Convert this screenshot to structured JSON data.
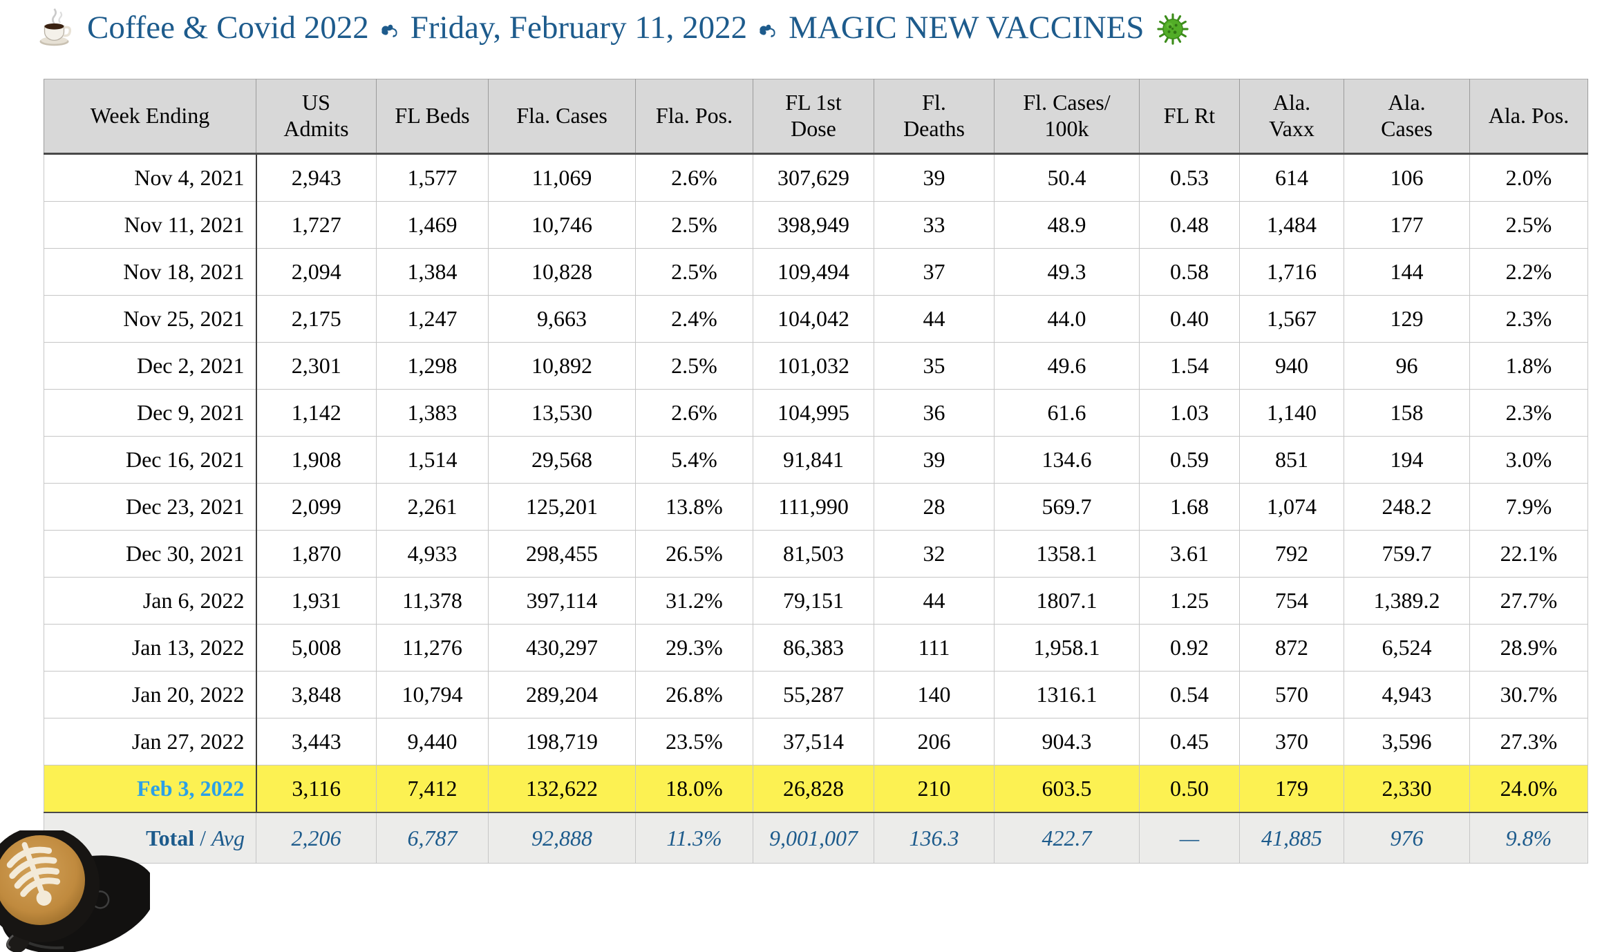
{
  "title": {
    "part1": "Coffee & Covid 2022",
    "part2": "Friday, February 11, 2022",
    "part3": "MAGIC NEW VACCINES",
    "separator_glyph": "❧"
  },
  "images": {
    "title_left": "steaming-coffee-cup",
    "title_right": "green-virus",
    "bottom_left": "latte-art-in-black-cup"
  },
  "colors": {
    "title_blue": "#1d5b8c",
    "header_gray": "#d8d8d8",
    "highlight_yellow": "#fcf152",
    "highlight_date_blue": "#2ba0e8",
    "total_row_gray": "#ececea",
    "total_text_blue": "#1d5b8c",
    "virus_green": "#52ad27"
  },
  "table": {
    "columns": [
      "Week Ending",
      "US\nAdmits",
      "FL Beds",
      "Fla. Cases",
      "Fla. Pos.",
      "FL 1st\nDose",
      "Fl.\nDeaths",
      "Fl. Cases/\n100k",
      "FL Rt",
      "Ala.\nVaxx",
      "Ala.\nCases",
      "Ala. Pos."
    ],
    "rows": [
      [
        "Nov 4, 2021",
        "2,943",
        "1,577",
        "11,069",
        "2.6%",
        "307,629",
        "39",
        "50.4",
        "0.53",
        "614",
        "106",
        "2.0%"
      ],
      [
        "Nov 11, 2021",
        "1,727",
        "1,469",
        "10,746",
        "2.5%",
        "398,949",
        "33",
        "48.9",
        "0.48",
        "1,484",
        "177",
        "2.5%"
      ],
      [
        "Nov 18, 2021",
        "2,094",
        "1,384",
        "10,828",
        "2.5%",
        "109,494",
        "37",
        "49.3",
        "0.58",
        "1,716",
        "144",
        "2.2%"
      ],
      [
        "Nov 25, 2021",
        "2,175",
        "1,247",
        "9,663",
        "2.4%",
        "104,042",
        "44",
        "44.0",
        "0.40",
        "1,567",
        "129",
        "2.3%"
      ],
      [
        "Dec 2, 2021",
        "2,301",
        "1,298",
        "10,892",
        "2.5%",
        "101,032",
        "35",
        "49.6",
        "1.54",
        "940",
        "96",
        "1.8%"
      ],
      [
        "Dec 9, 2021",
        "1,142",
        "1,383",
        "13,530",
        "2.6%",
        "104,995",
        "36",
        "61.6",
        "1.03",
        "1,140",
        "158",
        "2.3%"
      ],
      [
        "Dec 16, 2021",
        "1,908",
        "1,514",
        "29,568",
        "5.4%",
        "91,841",
        "39",
        "134.6",
        "0.59",
        "851",
        "194",
        "3.0%"
      ],
      [
        "Dec 23, 2021",
        "2,099",
        "2,261",
        "125,201",
        "13.8%",
        "111,990",
        "28",
        "569.7",
        "1.68",
        "1,074",
        "248.2",
        "7.9%"
      ],
      [
        "Dec 30, 2021",
        "1,870",
        "4,933",
        "298,455",
        "26.5%",
        "81,503",
        "32",
        "1358.1",
        "3.61",
        "792",
        "759.7",
        "22.1%"
      ],
      [
        "Jan 6, 2022",
        "1,931",
        "11,378",
        "397,114",
        "31.2%",
        "79,151",
        "44",
        "1807.1",
        "1.25",
        "754",
        "1,389.2",
        "27.7%"
      ],
      [
        "Jan 13, 2022",
        "5,008",
        "11,276",
        "430,297",
        "29.3%",
        "86,383",
        "111",
        "1,958.1",
        "0.92",
        "872",
        "6,524",
        "28.9%"
      ],
      [
        "Jan 20, 2022",
        "3,848",
        "10,794",
        "289,204",
        "26.8%",
        "55,287",
        "140",
        "1316.1",
        "0.54",
        "570",
        "4,943",
        "30.7%"
      ],
      [
        "Jan 27, 2022",
        "3,443",
        "9,440",
        "198,719",
        "23.5%",
        "37,514",
        "206",
        "904.3",
        "0.45",
        "370",
        "3,596",
        "27.3%"
      ],
      [
        "Feb 3, 2022",
        "3,116",
        "7,412",
        "132,622",
        "18.0%",
        "26,828",
        "210",
        "603.5",
        "0.50",
        "179",
        "2,330",
        "24.0%"
      ]
    ],
    "highlight_row_index": 13,
    "total_row": {
      "label_bold": "Total",
      "label_sep": " / ",
      "label_italic": "Avg",
      "values": [
        "2,206",
        "6,787",
        "92,888",
        "11.3%",
        "9,001,007",
        "136.3",
        "422.7",
        "—",
        "41,885",
        "976",
        "9.8%"
      ]
    }
  }
}
